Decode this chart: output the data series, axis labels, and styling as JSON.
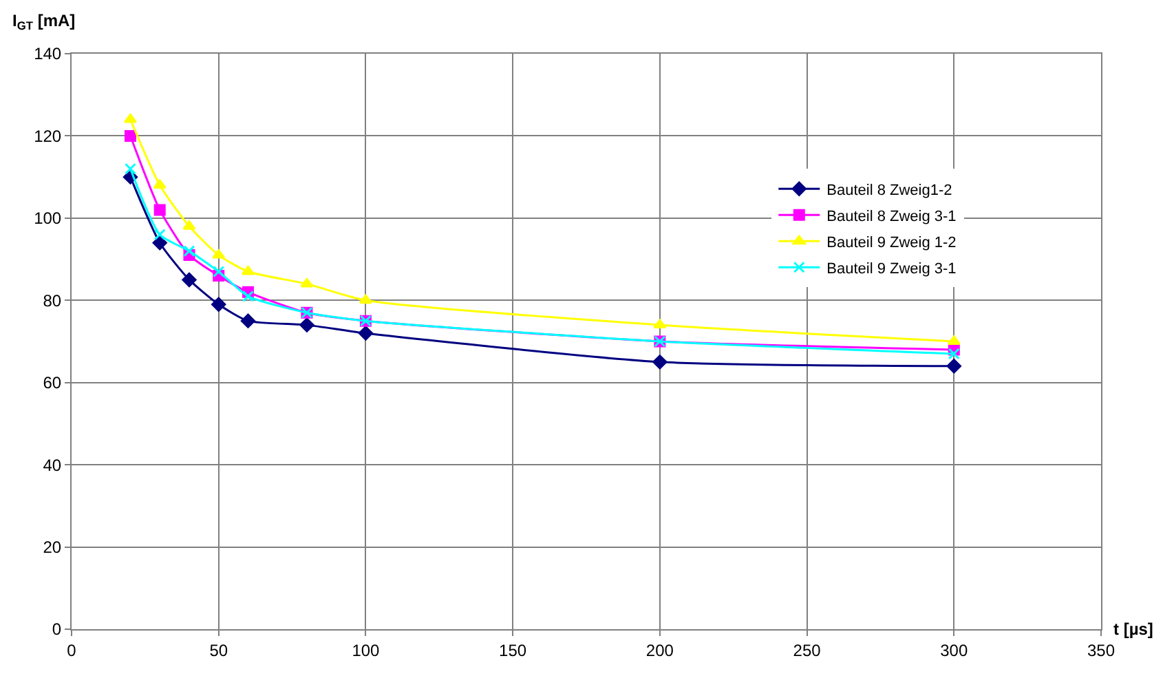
{
  "chart_data": {
    "type": "line",
    "xlabel": "t [µs]",
    "ylabel": "I$_{GT}$ [mA]",
    "x": [
      20,
      30,
      40,
      50,
      60,
      80,
      100,
      200,
      300
    ],
    "series": [
      {
        "name": "Bauteil 8 Zweig1-2",
        "color": "#000080",
        "marker": "diamond",
        "values": [
          110,
          94,
          85,
          79,
          75,
          74,
          72,
          65,
          64
        ]
      },
      {
        "name": "Bauteil 8 Zweig 3-1",
        "color": "#ff00ff",
        "marker": "square",
        "values": [
          120,
          102,
          91,
          86,
          82,
          77,
          75,
          70,
          68
        ]
      },
      {
        "name": "Bauteil 9 Zweig 1-2",
        "color": "#ffff00",
        "marker": "triangle",
        "values": [
          124,
          108,
          98,
          91,
          87,
          84,
          80,
          74,
          70
        ]
      },
      {
        "name": "Bauteil 9 Zweig 3-1",
        "color": "#00ffff",
        "marker": "cross",
        "values": [
          112,
          96,
          92,
          87,
          81,
          77,
          75,
          70,
          67
        ]
      }
    ],
    "xlim": [
      0,
      350
    ],
    "xticks": [
      0,
      50,
      100,
      150,
      200,
      250,
      300,
      350
    ],
    "ylim": [
      0,
      140
    ],
    "yticks": [
      0,
      20,
      40,
      60,
      80,
      100,
      120,
      140
    ],
    "grid": true,
    "legend": "top right",
    "line_style": "solid"
  }
}
